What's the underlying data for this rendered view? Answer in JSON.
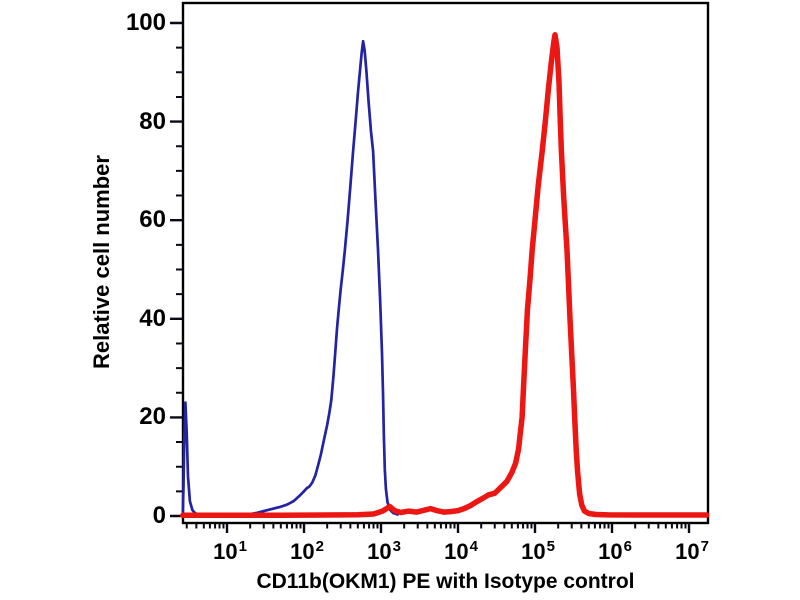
{
  "figure": {
    "background_color": "#ffffff",
    "frame_color": "#000000",
    "tick_color": "#0a0a14"
  },
  "chart_data": {
    "type": "line",
    "subtype": "flow-cytometry-histogram-overlay",
    "title": "",
    "xlabel": "CD11b(OKM1) PE with Isotype control",
    "ylabel": "Relative cell number",
    "x_scale": "log",
    "x_domain_log10": [
      0.43,
      7.25
    ],
    "ylim": [
      0,
      104
    ],
    "grid": false,
    "legend_position": "none",
    "y_ticks": [
      0,
      20,
      40,
      60,
      80,
      100
    ],
    "y_minor_step": 5,
    "x_tick_exponents": [
      1,
      2,
      3,
      4,
      5,
      6,
      7
    ],
    "x_tick_base": "10",
    "series": [
      {
        "name": "isotype-control",
        "color": "#2323A3",
        "line_width": 2.7,
        "peak": {
          "x": 585,
          "y": 96
        },
        "points": [
          [
            2.67,
            0.4
          ],
          [
            2.72,
            6
          ],
          [
            2.78,
            15
          ],
          [
            2.88,
            23
          ],
          [
            3.0,
            17
          ],
          [
            3.12,
            8
          ],
          [
            3.3,
            3
          ],
          [
            3.55,
            1.2
          ],
          [
            3.9,
            0.5
          ],
          [
            4.6,
            0.3
          ],
          [
            6,
            0.25
          ],
          [
            9,
            0.25
          ],
          [
            14,
            0.3
          ],
          [
            19,
            0.35
          ],
          [
            24,
            0.6
          ],
          [
            30,
            1.0
          ],
          [
            38,
            1.4
          ],
          [
            48,
            1.8
          ],
          [
            60,
            2.3
          ],
          [
            73,
            3.0
          ],
          [
            86,
            4.0
          ],
          [
            97,
            4.8
          ],
          [
            108,
            5.6
          ],
          [
            118,
            6.0
          ],
          [
            128,
            6.8
          ],
          [
            140,
            8.2
          ],
          [
            152,
            10.2
          ],
          [
            166,
            12.5
          ],
          [
            182,
            15.5
          ],
          [
            200,
            18.5
          ],
          [
            214,
            21
          ],
          [
            226,
            23.5
          ],
          [
            240,
            28
          ],
          [
            254,
            33
          ],
          [
            268,
            38
          ],
          [
            283,
            42
          ],
          [
            300,
            46
          ],
          [
            320,
            50
          ],
          [
            340,
            54
          ],
          [
            368,
            60
          ],
          [
            400,
            67
          ],
          [
            434,
            74
          ],
          [
            468,
            80
          ],
          [
            503,
            86
          ],
          [
            538,
            91
          ],
          [
            562,
            94
          ],
          [
            585,
            96.3
          ],
          [
            612,
            94.5
          ],
          [
            645,
            90.5
          ],
          [
            690,
            84
          ],
          [
            742,
            78
          ],
          [
            790,
            74
          ],
          [
            848,
            64
          ],
          [
            915,
            54
          ],
          [
            972,
            44
          ],
          [
            1030,
            33
          ],
          [
            1062,
            25
          ],
          [
            1092,
            16
          ],
          [
            1122,
            9.5
          ],
          [
            1158,
            5.5
          ],
          [
            1215,
            2.8
          ],
          [
            1300,
            1.3
          ],
          [
            1440,
            0.6
          ],
          [
            1650,
            0.3
          ]
        ]
      },
      {
        "name": "cd11b-okm1-pe",
        "color": "#EC1612",
        "line_width": 5.5,
        "peak": {
          "x": 182000,
          "y": 97.5
        },
        "points": [
          [
            2.67,
            0.15
          ],
          [
            10,
            0.15
          ],
          [
            50,
            0.15
          ],
          [
            200,
            0.2
          ],
          [
            500,
            0.25
          ],
          [
            800,
            0.4
          ],
          [
            1050,
            1.0
          ],
          [
            1300,
            1.9
          ],
          [
            1500,
            1.1
          ],
          [
            1800,
            0.7
          ],
          [
            2300,
            1.0
          ],
          [
            2900,
            0.8
          ],
          [
            3700,
            1.2
          ],
          [
            4400,
            1.5
          ],
          [
            5300,
            1.1
          ],
          [
            6500,
            0.8
          ],
          [
            8000,
            0.9
          ],
          [
            10000,
            1.1
          ],
          [
            12000,
            1.5
          ],
          [
            14500,
            2.1
          ],
          [
            17500,
            2.9
          ],
          [
            21000,
            3.6
          ],
          [
            25000,
            4.3
          ],
          [
            30000,
            4.6
          ],
          [
            36000,
            5.8
          ],
          [
            43000,
            7.0
          ],
          [
            50000,
            8.8
          ],
          [
            56000,
            10.7
          ],
          [
            61000,
            13.5
          ],
          [
            64500,
            16.8
          ],
          [
            68000,
            20
          ],
          [
            71000,
            26
          ],
          [
            74500,
            33
          ],
          [
            80000,
            42
          ],
          [
            86000,
            48
          ],
          [
            92000,
            54
          ],
          [
            100000,
            60
          ],
          [
            110000,
            67
          ],
          [
            124000,
            74
          ],
          [
            136000,
            80
          ],
          [
            150000,
            87
          ],
          [
            163000,
            92
          ],
          [
            175000,
            96
          ],
          [
            182000,
            97.6
          ],
          [
            193000,
            95
          ],
          [
            205000,
            88
          ],
          [
            213000,
            80
          ],
          [
            220000,
            74
          ],
          [
            235000,
            65
          ],
          [
            248000,
            59
          ],
          [
            260000,
            54
          ],
          [
            272000,
            47
          ],
          [
            285000,
            40
          ],
          [
            300000,
            33
          ],
          [
            315000,
            26
          ],
          [
            330000,
            19
          ],
          [
            344000,
            13
          ],
          [
            358000,
            9
          ],
          [
            380000,
            4.5
          ],
          [
            405000,
            2.2
          ],
          [
            440000,
            1.0
          ],
          [
            500000,
            0.5
          ],
          [
            620000,
            0.3
          ],
          [
            900000,
            0.22
          ],
          [
            2000000,
            0.2
          ],
          [
            17000000,
            0.2
          ]
        ]
      }
    ]
  }
}
